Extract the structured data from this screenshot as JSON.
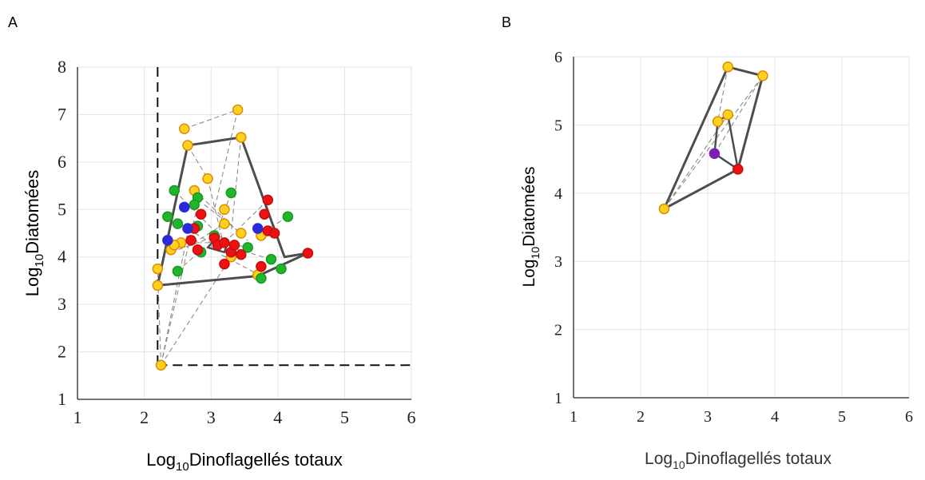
{
  "panels": {
    "a": {
      "letter": "A"
    },
    "b": {
      "letter": "B"
    }
  },
  "colors": {
    "hull": "#4d4d4d",
    "links": "#8c8c8c",
    "grid": "#e3e3e3",
    "threshold": "#111111",
    "point_edge": "#e08b00",
    "yellow": "#ffd21f",
    "green": "#21b52e",
    "red": "#ee1111",
    "blue": "#2a2ad8",
    "purple": "#7b1fb4"
  },
  "chart_data": [
    {
      "type": "scatter",
      "panel": "A",
      "xlabel": {
        "prefix": "Log",
        "sub": "10",
        "text": "Dinoflagellés totaux"
      },
      "ylabel": {
        "prefix": "Log",
        "sub": "10",
        "text": "Diatomées"
      },
      "xlim": [
        1,
        6
      ],
      "ylim": [
        1,
        8
      ],
      "xticks": [
        1,
        2,
        3,
        4,
        5,
        6
      ],
      "yticks": [
        1,
        2,
        3,
        4,
        5,
        6,
        7,
        8
      ],
      "grid": true,
      "thresholds": {
        "x": 2.2,
        "y": 1.72,
        "style": "dashed"
      },
      "hull": [
        [
          2.2,
          3.4
        ],
        [
          2.65,
          6.35
        ],
        [
          3.45,
          6.52
        ],
        [
          4.1,
          4.0
        ],
        [
          4.45,
          4.08
        ],
        [
          3.7,
          3.6
        ]
      ],
      "inner_polygon": [
        [
          2.95,
          4.2
        ],
        [
          3.2,
          4.1
        ],
        [
          3.25,
          4.3
        ],
        [
          3.05,
          4.35
        ]
      ],
      "links": [
        [
          [
            2.25,
            1.72
          ],
          [
            2.2,
            3.75
          ]
        ],
        [
          [
            2.25,
            1.72
          ],
          [
            2.65,
            4.5
          ]
        ],
        [
          [
            2.25,
            1.72
          ],
          [
            3.3,
            4.0
          ]
        ],
        [
          [
            2.25,
            1.72
          ],
          [
            2.8,
            5.1
          ]
        ],
        [
          [
            2.6,
            6.7
          ],
          [
            3.4,
            7.1
          ]
        ],
        [
          [
            3.4,
            7.1
          ],
          [
            3.05,
            5.0
          ]
        ],
        [
          [
            2.65,
            6.35
          ],
          [
            2.95,
            5.65
          ]
        ],
        [
          [
            2.9,
            5.1
          ],
          [
            3.45,
            4.5
          ]
        ],
        [
          [
            2.45,
            5.4
          ],
          [
            3.3,
            4.2
          ]
        ],
        [
          [
            2.4,
            4.1
          ],
          [
            3.0,
            4.4
          ]
        ],
        [
          [
            3.3,
            5.35
          ],
          [
            3.0,
            4.2
          ]
        ],
        [
          [
            3.6,
            4.2
          ],
          [
            3.1,
            4.3
          ]
        ],
        [
          [
            4.15,
            4.85
          ],
          [
            3.7,
            4.45
          ]
        ],
        [
          [
            3.85,
            5.2
          ],
          [
            3.2,
            4.3
          ]
        ],
        [
          [
            2.5,
            3.7
          ],
          [
            2.9,
            4.2
          ]
        ],
        [
          [
            3.75,
            3.6
          ],
          [
            3.15,
            4.05
          ]
        ],
        [
          [
            2.75,
            5.4
          ],
          [
            3.55,
            4.35
          ]
        ],
        [
          [
            2.35,
            4.85
          ],
          [
            3.05,
            4.25
          ]
        ],
        [
          [
            3.2,
            4.7
          ],
          [
            2.75,
            4.3
          ]
        ],
        [
          [
            3.9,
            3.95
          ],
          [
            3.3,
            4.2
          ]
        ],
        [
          [
            2.55,
            4.3
          ],
          [
            3.25,
            4.3
          ]
        ],
        [
          [
            2.95,
            5.65
          ],
          [
            3.25,
            3.9
          ]
        ],
        [
          [
            3.45,
            6.52
          ],
          [
            3.3,
            4.5
          ]
        ]
      ],
      "series": [
        {
          "color": "yellow",
          "points": [
            [
              2.25,
              1.72
            ],
            [
              2.2,
              3.75
            ],
            [
              2.2,
              3.4
            ],
            [
              2.6,
              6.7
            ],
            [
              2.65,
              6.35
            ],
            [
              3.4,
              7.1
            ],
            [
              3.45,
              6.52
            ],
            [
              2.95,
              5.65
            ],
            [
              2.75,
              5.4
            ],
            [
              3.2,
              5.0
            ],
            [
              3.2,
              4.7
            ],
            [
              3.45,
              4.5
            ],
            [
              2.4,
              4.15
            ],
            [
              2.55,
              4.3
            ],
            [
              3.3,
              4.0
            ],
            [
              3.7,
              3.62
            ],
            [
              3.75,
              4.45
            ],
            [
              2.45,
              4.25
            ]
          ]
        },
        {
          "color": "green",
          "points": [
            [
              2.45,
              5.4
            ],
            [
              2.35,
              4.85
            ],
            [
              2.5,
              4.7
            ],
            [
              2.8,
              5.25
            ],
            [
              2.75,
              5.1
            ],
            [
              3.3,
              5.35
            ],
            [
              2.8,
              4.65
            ],
            [
              3.05,
              4.45
            ],
            [
              3.55,
              4.2
            ],
            [
              3.75,
              3.55
            ],
            [
              3.9,
              3.95
            ],
            [
              4.05,
              3.75
            ],
            [
              4.15,
              4.85
            ],
            [
              2.5,
              3.7
            ],
            [
              2.85,
              4.1
            ]
          ]
        },
        {
          "color": "red",
          "points": [
            [
              2.75,
              4.6
            ],
            [
              2.8,
              4.15
            ],
            [
              2.7,
              4.35
            ],
            [
              2.85,
              4.9
            ],
            [
              3.05,
              4.4
            ],
            [
              3.1,
              4.25
            ],
            [
              3.2,
              4.3
            ],
            [
              3.2,
              3.85
            ],
            [
              3.3,
              4.1
            ],
            [
              3.35,
              4.25
            ],
            [
              3.45,
              4.05
            ],
            [
              3.75,
              3.8
            ],
            [
              3.8,
              4.9
            ],
            [
              3.85,
              4.55
            ],
            [
              3.85,
              5.2
            ],
            [
              3.95,
              4.5
            ],
            [
              4.45,
              4.08
            ]
          ]
        },
        {
          "color": "blue",
          "points": [
            [
              2.35,
              4.35
            ],
            [
              2.6,
              5.05
            ],
            [
              2.65,
              4.6
            ],
            [
              3.7,
              4.6
            ]
          ]
        }
      ]
    },
    {
      "type": "scatter",
      "panel": "B",
      "xlabel": {
        "prefix": "Log",
        "sub": "10",
        "text": "Dinoflagellés totaux"
      },
      "ylabel": {
        "prefix": "Log",
        "sub": "10",
        "text": "Diatomées"
      },
      "xlim": [
        1,
        6
      ],
      "ylim": [
        1,
        6
      ],
      "xticks": [
        1,
        2,
        3,
        4,
        5,
        6
      ],
      "yticks": [
        1,
        2,
        3,
        4,
        5,
        6
      ],
      "grid": true,
      "hull": [
        [
          2.35,
          3.77
        ],
        [
          3.3,
          5.85
        ],
        [
          3.82,
          5.72
        ],
        [
          3.45,
          4.35
        ]
      ],
      "inner_polygon": [
        [
          3.1,
          4.58
        ],
        [
          3.15,
          5.05
        ],
        [
          3.3,
          5.15
        ],
        [
          3.45,
          4.35
        ]
      ],
      "links": [
        [
          [
            2.35,
            3.77
          ],
          [
            3.3,
            5.15
          ]
        ],
        [
          [
            2.35,
            3.77
          ],
          [
            3.82,
            5.72
          ]
        ],
        [
          [
            3.1,
            4.58
          ],
          [
            3.82,
            5.72
          ]
        ],
        [
          [
            3.3,
            5.85
          ],
          [
            3.15,
            5.05
          ]
        ],
        [
          [
            3.3,
            5.15
          ],
          [
            3.45,
            4.35
          ]
        ]
      ],
      "series": [
        {
          "color": "yellow",
          "points": [
            [
              3.3,
              5.85
            ],
            [
              3.3,
              5.15
            ],
            [
              2.35,
              3.77
            ],
            [
              3.82,
              5.72
            ],
            [
              3.15,
              5.05
            ]
          ]
        },
        {
          "color": "red",
          "points": [
            [
              3.45,
              4.35
            ]
          ]
        },
        {
          "color": "purple",
          "points": [
            [
              3.1,
              4.58
            ]
          ]
        }
      ]
    }
  ]
}
